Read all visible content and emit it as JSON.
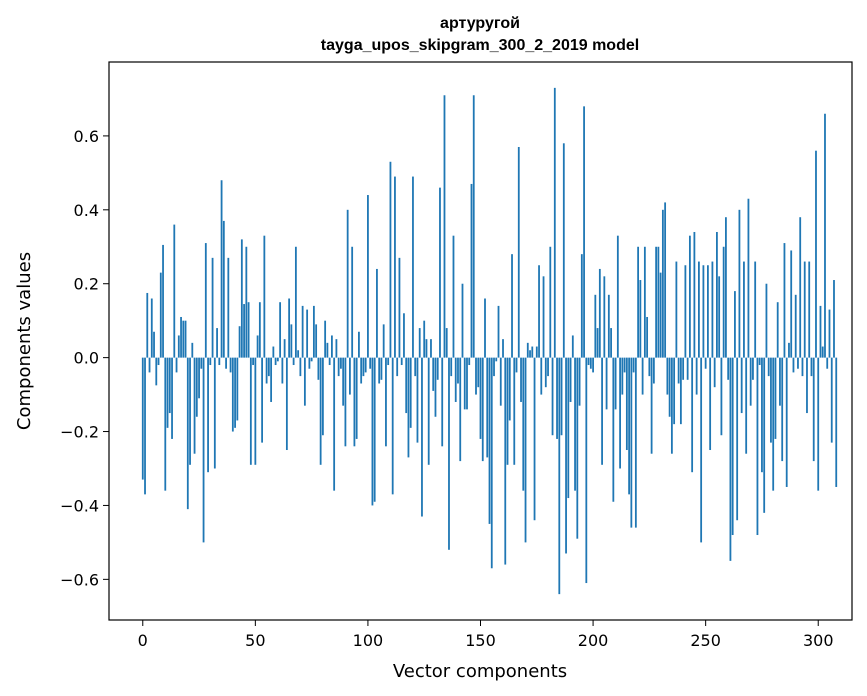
{
  "chart_data": {
    "type": "bar",
    "title": "артуругой",
    "subtitle": "tayga_upos_skipgram_300_2_2019 model",
    "xlabel": "Vector components",
    "ylabel": "Components values",
    "xlim": [
      -15,
      315
    ],
    "ylim": [
      -0.71,
      0.8
    ],
    "xticks": [
      0,
      50,
      100,
      150,
      200,
      250,
      300
    ],
    "xtick_labels": [
      "0",
      "50",
      "100",
      "150",
      "200",
      "250",
      "300"
    ],
    "yticks": [
      -0.6,
      -0.4,
      -0.2,
      0.0,
      0.2,
      0.4,
      0.6
    ],
    "ytick_labels": [
      "−0.6",
      "−0.4",
      "−0.2",
      "0.0",
      "0.2",
      "0.4",
      "0.6"
    ],
    "bar_color": "#1f77b4",
    "grid": false,
    "values": [
      -0.33,
      -0.37,
      0.175,
      -0.04,
      0.16,
      0.07,
      -0.075,
      -0.02,
      0.23,
      0.305,
      -0.36,
      -0.19,
      -0.15,
      -0.22,
      0.36,
      -0.04,
      0.06,
      0.11,
      0.1,
      0.1,
      -0.41,
      -0.29,
      0.04,
      -0.26,
      -0.16,
      -0.11,
      -0.03,
      -0.5,
      0.31,
      -0.31,
      -0.02,
      0.27,
      -0.3,
      0.08,
      -0.02,
      0.48,
      0.37,
      -0.03,
      0.27,
      -0.04,
      -0.2,
      -0.19,
      -0.17,
      0.085,
      0.32,
      0.145,
      0.3,
      0.15,
      -0.29,
      -0.02,
      -0.29,
      0.06,
      0.15,
      -0.23,
      0.33,
      -0.07,
      -0.05,
      -0.12,
      0.03,
      -0.02,
      -0.01,
      0.15,
      -0.07,
      0.05,
      -0.25,
      0.16,
      0.09,
      -0.02,
      0.3,
      0.02,
      -0.05,
      0.14,
      -0.13,
      0.13,
      -0.03,
      -0.01,
      0.14,
      0.09,
      -0.06,
      -0.29,
      -0.21,
      0.1,
      0.04,
      -0.02,
      0.06,
      -0.36,
      0.05,
      -0.05,
      -0.03,
      -0.13,
      -0.24,
      0.4,
      -0.1,
      0.3,
      -0.24,
      -0.22,
      0.07,
      -0.07,
      -0.05,
      -0.04,
      0.44,
      -0.03,
      -0.4,
      -0.39,
      0.24,
      -0.07,
      -0.06,
      0.09,
      -0.24,
      -0.02,
      0.53,
      -0.37,
      0.49,
      -0.05,
      0.27,
      -0.02,
      0.12,
      -0.15,
      -0.27,
      -0.19,
      0.49,
      -0.05,
      -0.23,
      0.08,
      -0.43,
      0.1,
      0.05,
      -0.29,
      0.05,
      -0.09,
      -0.16,
      -0.06,
      0.46,
      -0.24,
      0.71,
      0.08,
      -0.52,
      -0.05,
      0.33,
      -0.12,
      -0.07,
      -0.28,
      0.2,
      -0.14,
      -0.14,
      -0.02,
      0.47,
      0.71,
      -0.1,
      -0.08,
      -0.22,
      -0.28,
      0.16,
      -0.27,
      -0.45,
      -0.57,
      -0.05,
      -0.01,
      0.14,
      -0.13,
      0.05,
      -0.56,
      -0.29,
      -0.17,
      0.28,
      -0.29,
      -0.04,
      0.57,
      -0.12,
      -0.36,
      -0.5,
      0.04,
      0.02,
      0.03,
      -0.44,
      0.03,
      0.25,
      -0.1,
      0.22,
      -0.08,
      -0.05,
      0.3,
      -0.21,
      0.73,
      -0.22,
      -0.64,
      -0.21,
      0.58,
      -0.53,
      -0.38,
      -0.12,
      0.06,
      -0.36,
      -0.49,
      -0.13,
      0.28,
      0.68,
      -0.61,
      -0.02,
      -0.03,
      -0.04,
      0.17,
      0.08,
      0.24,
      -0.29,
      0.22,
      -0.14,
      0.17,
      0.08,
      -0.39,
      -0.14,
      0.33,
      -0.3,
      -0.1,
      -0.04,
      -0.25,
      -0.37,
      -0.46,
      -0.04,
      -0.46,
      0.3,
      0.21,
      -0.1,
      0.3,
      0.11,
      -0.05,
      -0.26,
      -0.07,
      0.3,
      0.3,
      0.23,
      0.4,
      0.42,
      -0.1,
      -0.16,
      -0.26,
      -0.18,
      0.26,
      -0.07,
      -0.18,
      -0.06,
      0.25,
      -0.06,
      0.33,
      -0.31,
      0.34,
      -0.1,
      0.26,
      -0.5,
      0.25,
      -0.03,
      0.25,
      -0.25,
      0.26,
      -0.08,
      0.34,
      0.22,
      -0.21,
      0.3,
      0.38,
      -0.06,
      -0.55,
      -0.48,
      0.18,
      -0.44,
      0.4,
      -0.15,
      0.26,
      -0.26,
      0.43,
      -0.13,
      -0.06,
      0.26,
      -0.48,
      -0.02,
      -0.31,
      -0.42,
      0.2,
      -0.05,
      -0.23,
      -0.36,
      -0.22,
      0.15,
      -0.13,
      -0.28,
      0.31,
      -0.35,
      0.04,
      0.29,
      -0.04,
      0.17,
      -0.03,
      0.38,
      -0.05,
      0.26,
      -0.15,
      0.26,
      -0.05,
      -0.28,
      0.56,
      -0.36,
      0.14,
      0.03,
      0.66,
      -0.03,
      0.13,
      -0.23,
      0.21,
      -0.35
    ]
  }
}
